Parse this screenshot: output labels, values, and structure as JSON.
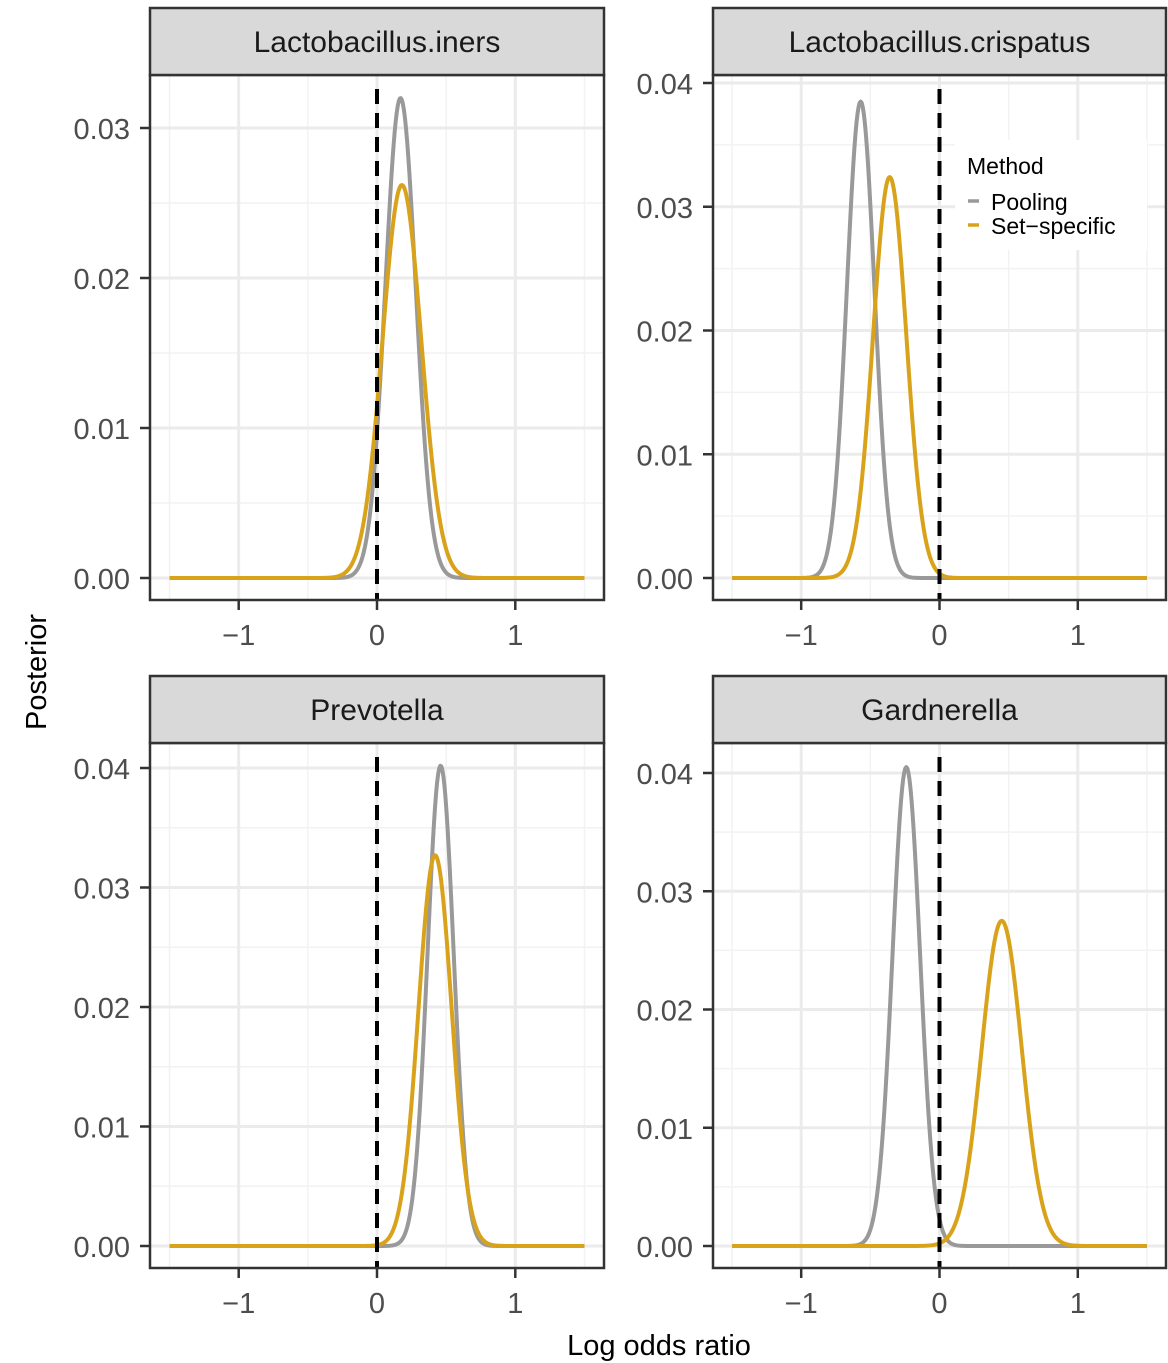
{
  "figure": {
    "xlabel": "Log odds ratio",
    "ylabel": "Posterior"
  },
  "legend": {
    "title": "Method",
    "entries": [
      {
        "name": "Pooling",
        "color": "#999999"
      },
      {
        "name": "Set−specific",
        "color": "#D9A21B"
      }
    ]
  },
  "chart_data": [
    {
      "type": "line",
      "title": "Lactobacillus.iners",
      "xlim": [
        -1.5,
        1.5
      ],
      "ylim": [
        0,
        0.03
      ],
      "xticks": [
        -1,
        0,
        1
      ],
      "xtick_labels": [
        "−1",
        "0",
        "1"
      ],
      "yticks": [
        0,
        0.01,
        0.02,
        0.03
      ],
      "ytick_labels": [
        "0.00",
        "0.01",
        "0.02",
        "0.03"
      ],
      "reference_line_x": 0,
      "series": [
        {
          "name": "Pooling",
          "color": "#999999",
          "peak_x": 0.17,
          "peak_y": 0.032,
          "sd": 0.11
        },
        {
          "name": "Set−specific",
          "color": "#D9A21B",
          "peak_x": 0.18,
          "peak_y": 0.0262,
          "sd": 0.14
        }
      ]
    },
    {
      "type": "line",
      "title": "Lactobacillus.crispatus",
      "xlim": [
        -1.5,
        1.5
      ],
      "ylim": [
        0,
        0.04
      ],
      "xticks": [
        -1,
        0,
        1
      ],
      "xtick_labels": [
        "−1",
        "0",
        "1"
      ],
      "yticks": [
        0,
        0.01,
        0.02,
        0.03,
        0.04
      ],
      "ytick_labels": [
        "0.00",
        "0.01",
        "0.02",
        "0.03",
        "0.04"
      ],
      "reference_line_x": 0,
      "series": [
        {
          "name": "Pooling",
          "color": "#999999",
          "peak_x": -0.57,
          "peak_y": 0.0385,
          "sd": 0.1
        },
        {
          "name": "Set−specific",
          "color": "#D9A21B",
          "peak_x": -0.36,
          "peak_y": 0.0324,
          "sd": 0.12
        }
      ]
    },
    {
      "type": "line",
      "title": "Prevotella",
      "xlim": [
        -1.5,
        1.5
      ],
      "ylim": [
        0,
        0.04
      ],
      "xticks": [
        -1,
        0,
        1
      ],
      "xtick_labels": [
        "−1",
        "0",
        "1"
      ],
      "yticks": [
        0,
        0.01,
        0.02,
        0.03,
        0.04
      ],
      "ytick_labels": [
        "0.00",
        "0.01",
        "0.02",
        "0.03",
        "0.04"
      ],
      "reference_line_x": 0,
      "series": [
        {
          "name": "Pooling",
          "color": "#999999",
          "peak_x": 0.46,
          "peak_y": 0.0402,
          "sd": 0.095
        },
        {
          "name": "Set−specific",
          "color": "#D9A21B",
          "peak_x": 0.42,
          "peak_y": 0.0327,
          "sd": 0.12
        }
      ]
    },
    {
      "type": "line",
      "title": "Gardnerella",
      "xlim": [
        -1.5,
        1.5
      ],
      "ylim": [
        0,
        0.04
      ],
      "xticks": [
        -1,
        0,
        1
      ],
      "xtick_labels": [
        "−1",
        "0",
        "1"
      ],
      "yticks": [
        0,
        0.01,
        0.02,
        0.03,
        0.04
      ],
      "ytick_labels": [
        "0.00",
        "0.01",
        "0.02",
        "0.03",
        "0.04"
      ],
      "reference_line_x": 0,
      "series": [
        {
          "name": "Pooling",
          "color": "#999999",
          "peak_x": -0.24,
          "peak_y": 0.0405,
          "sd": 0.1
        },
        {
          "name": "Set−specific",
          "color": "#D9A21B",
          "peak_x": 0.45,
          "peak_y": 0.0275,
          "sd": 0.145
        }
      ]
    }
  ]
}
